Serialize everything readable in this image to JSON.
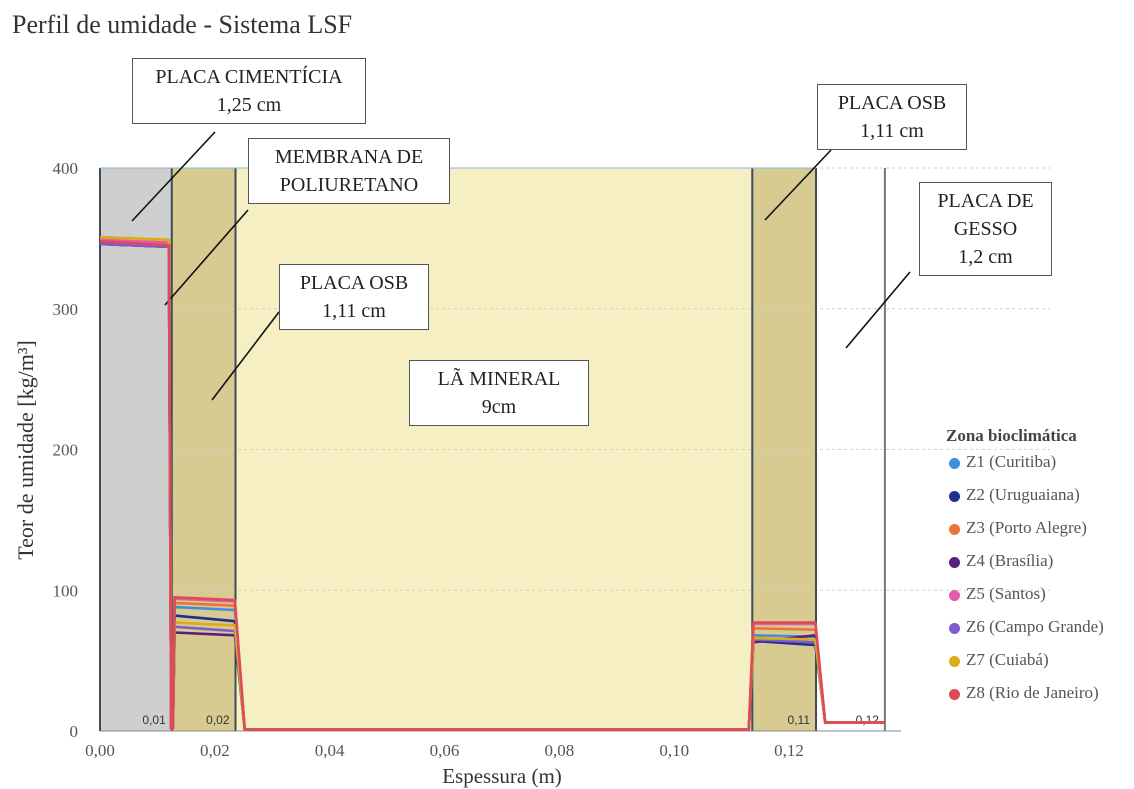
{
  "chart_data": {
    "type": "line",
    "title": "Perfil de umidade - Sistema LSF",
    "xlabel": "Espessura (m)",
    "ylabel": "Teor de umidade [kg/m³]",
    "xlim": [
      0,
      0.1395
    ],
    "ylim": [
      0,
      400
    ],
    "x_ticks": [
      "0,00",
      "0,02",
      "0,04",
      "0,06",
      "0,08",
      "0,10",
      "0,12"
    ],
    "y_ticks": [
      "0",
      "100",
      "200",
      "300",
      "400"
    ],
    "grid": true,
    "legend_position": "right",
    "layers": [
      {
        "name": "Placa cimentícia",
        "x0": 0.0,
        "x1": 0.0125,
        "color": "#cfcfcf",
        "marker": "0,01"
      },
      {
        "name": "Membrana + Placa OSB",
        "x0": 0.0125,
        "x1": 0.0236,
        "color": "#d7cb92",
        "marker": "0,02"
      },
      {
        "name": "Lã mineral",
        "x0": 0.0236,
        "x1": 0.1136,
        "color": "#f7efc4",
        "marker": ""
      },
      {
        "name": "Placa OSB",
        "x0": 0.1136,
        "x1": 0.1247,
        "color": "#d7cb92",
        "marker": "0,11"
      },
      {
        "name": "Placa de gesso",
        "x0": 0.1247,
        "x1": 0.1367,
        "color": "#ffffff",
        "marker": "0,12"
      }
    ],
    "annotations": [
      {
        "line1": "PLACA CIMENTÍCIA",
        "line2": "1,25 cm"
      },
      {
        "line1": "MEMBRANA DE",
        "line2": "POLIURETANO"
      },
      {
        "line1": "PLACA OSB",
        "line2": "1,11 cm"
      },
      {
        "line1": "LÃ MINERAL",
        "line2": "9cm"
      },
      {
        "line1": "PLACA OSB",
        "line2": "1,11 cm"
      },
      {
        "line1": "PLACA DE",
        "line2": "GESSO",
        "line3": "1,2 cm"
      }
    ],
    "legend_title": "Zona bioclimática",
    "series": [
      {
        "name": "Z1 (Curitiba)",
        "color": "#3f8fdc",
        "cement": [
          347,
          345
        ],
        "osb1": [
          88,
          86
        ],
        "osb2": [
          68,
          67
        ],
        "gesso": 6
      },
      {
        "name": "Z2 (Uruguaiana)",
        "color": "#1f2f8f",
        "cement": [
          346,
          344
        ],
        "osb1": [
          82,
          78
        ],
        "osb2": [
          64,
          61
        ],
        "gesso": 6
      },
      {
        "name": "Z3 (Porto Alegre)",
        "color": "#e8763a",
        "cement": [
          348,
          346
        ],
        "osb1": [
          91,
          89
        ],
        "osb2": [
          73,
          72
        ],
        "gesso": 6
      },
      {
        "name": "Z4 (Brasília)",
        "color": "#5a1f7c",
        "cement": [
          346,
          344
        ],
        "osb1": [
          70,
          68
        ],
        "osb2": [
          63,
          68
        ],
        "gesso": 6
      },
      {
        "name": "Z5 (Santos)",
        "color": "#e25aa8",
        "cement": [
          349,
          347
        ],
        "osb1": [
          94,
          92
        ],
        "osb2": [
          76,
          76
        ],
        "gesso": 6
      },
      {
        "name": "Z6 (Campo Grande)",
        "color": "#7e5cd0",
        "cement": [
          346,
          344
        ],
        "osb1": [
          74,
          71
        ],
        "osb2": [
          65,
          63
        ],
        "gesso": 6
      },
      {
        "name": "Z7 (Cuiabá)",
        "color": "#d9ad13",
        "cement": [
          351,
          349
        ],
        "osb1": [
          77,
          75
        ],
        "osb2": [
          66,
          65
        ],
        "gesso": 6
      },
      {
        "name": "Z8 (Rio de Janeiro)",
        "color": "#dc4b57",
        "cement": [
          348,
          345
        ],
        "osb1": [
          95,
          93
        ],
        "osb2": [
          77,
          77
        ],
        "gesso": 6
      }
    ]
  }
}
